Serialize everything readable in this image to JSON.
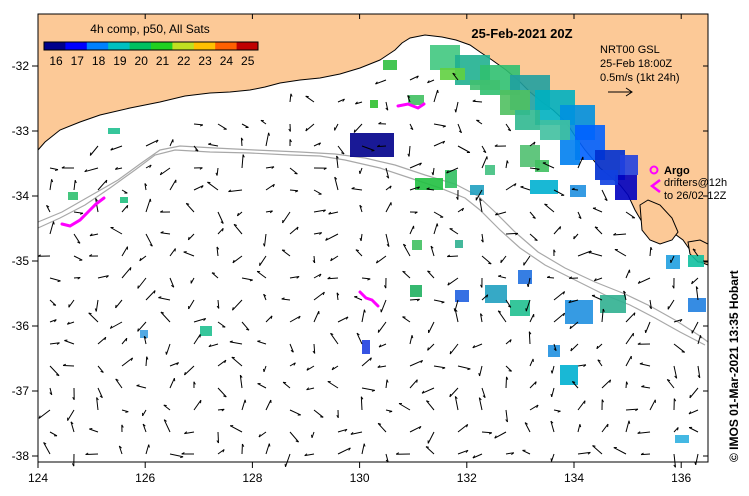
{
  "title": {
    "date": "25-Feb-2021 20Z"
  },
  "legend": {
    "label": "4h comp, p50, All Sats",
    "ticks": [
      "16",
      "17",
      "18",
      "19",
      "20",
      "21",
      "22",
      "23",
      "24",
      "25"
    ],
    "colors": [
      "#00008b",
      "#0000ff",
      "#0080ff",
      "#00c0c0",
      "#00c060",
      "#20d020",
      "#c0e020",
      "#ffc000",
      "#ff6000",
      "#c00000"
    ]
  },
  "current_info": {
    "line1": "NRT00 GSL",
    "line2": "25-Feb 18:00Z",
    "line3": "0.5m/s (1kt 24h)"
  },
  "argo": {
    "label": "Argo",
    "symbol": "o"
  },
  "drifters": {
    "line1": "drifters@12h",
    "line2": "to 26/02-12Z"
  },
  "credit": "©  IMOS 01-Mar-2021 13:35 Hobart",
  "axes": {
    "x_ticks": [
      "124",
      "126",
      "128",
      "130",
      "132",
      "134",
      "136"
    ],
    "y_ticks": [
      "-32",
      "-33",
      "-34",
      "-35",
      "-36",
      "-37",
      "-38"
    ]
  },
  "colors": {
    "land": "#fcc997",
    "ocean": "#ffffff",
    "isobath": "#a8a8a8",
    "argo": "#ff00ff",
    "drifter": "#ff00ff",
    "arrow": "#000000"
  }
}
